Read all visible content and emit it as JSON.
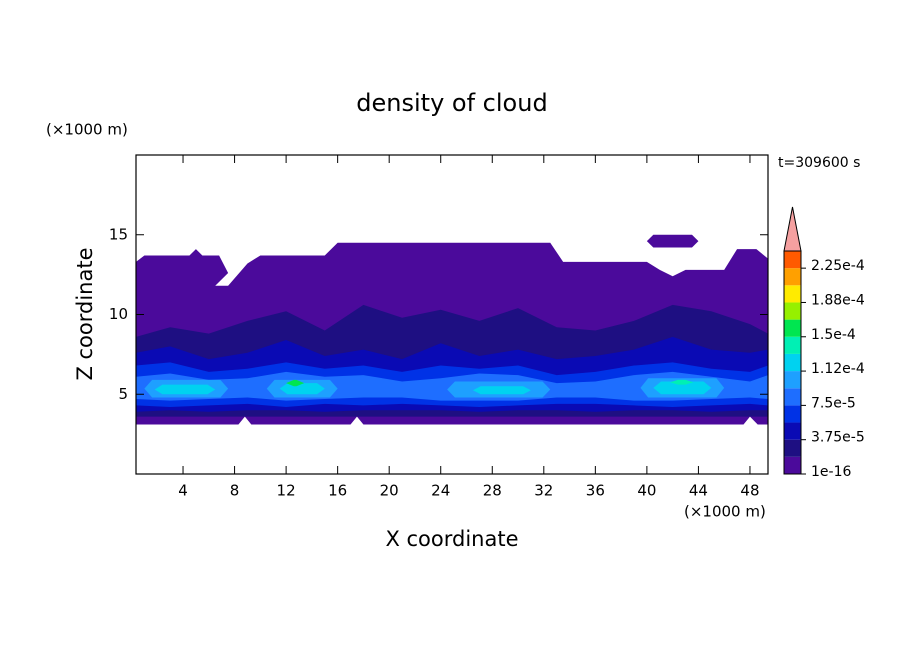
{
  "chart_data": {
    "type": "contour",
    "title": "density of cloud",
    "x_label": "X coordinate",
    "y_label": "Z coordinate",
    "x_unit": "(×1000 m)",
    "y_unit": "(×1000 m)",
    "time_label": "t=309600 s",
    "xlim": [
      0.35,
      49.4
    ],
    "xticks": [
      4,
      8,
      12,
      16,
      20,
      24,
      28,
      32,
      36,
      40,
      44,
      48
    ],
    "ylim": [
      0,
      20
    ],
    "yticks": [
      5,
      10,
      15
    ],
    "colorbar": {
      "lim": [
        1e-16,
        0.00024375
      ],
      "ticks": [
        {
          "value": 1e-16,
          "label": "1e-16"
        },
        {
          "value": 3.75e-05,
          "label": "3.75e-5"
        },
        {
          "value": 7.5e-05,
          "label": "7.5e-5"
        },
        {
          "value": 0.0001125,
          "label": "1.12e-4"
        },
        {
          "value": 0.00015,
          "label": "1.5e-4"
        },
        {
          "value": 0.0001875,
          "label": "1.88e-4"
        },
        {
          "value": 0.000225,
          "label": "2.25e-4"
        }
      ],
      "colors": [
        "#4b0a9b",
        "#1e0f82",
        "#0a0ab4",
        "#0032e6",
        "#1e6eff",
        "#1ea0ff",
        "#00d2f0",
        "#00f0b4",
        "#00e650",
        "#96f000",
        "#ffeb00",
        "#ffa000",
        "#ff5a00"
      ],
      "extend_color": "#f5a0a0"
    }
  }
}
